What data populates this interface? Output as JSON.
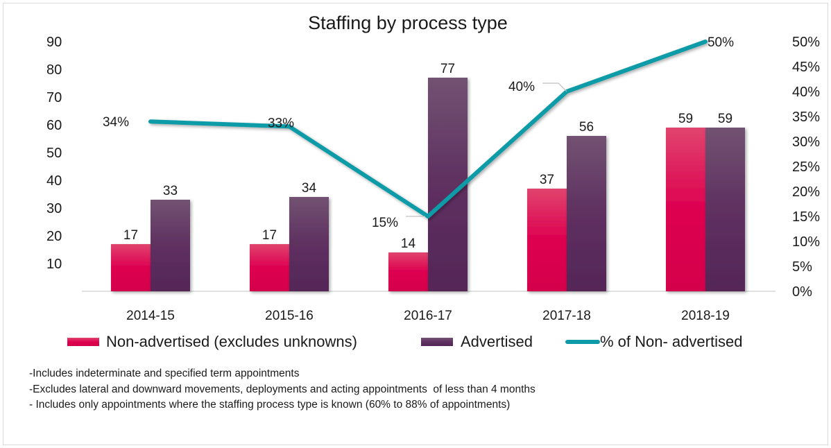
{
  "chart_data": {
    "type": "bar",
    "title": "Staffing by process type",
    "categories": [
      "2014-15",
      "2015-16",
      "2016-17",
      "2017-18",
      "2018-19"
    ],
    "series": [
      {
        "name": "Non-advertised (excludes unknowns)",
        "kind": "bar",
        "axis": "left",
        "color": "#D9004C",
        "values": [
          17,
          17,
          14,
          37,
          59
        ]
      },
      {
        "name": "Advertised",
        "kind": "bar",
        "axis": "left",
        "color": "#5A2A5C",
        "values": [
          33,
          34,
          77,
          56,
          59
        ]
      },
      {
        "name": "% of Non- advertised",
        "kind": "line",
        "axis": "right",
        "color": "#0E9BA8",
        "values": [
          34,
          33,
          15,
          40,
          50
        ],
        "labels": [
          "34%",
          "33%",
          "15%",
          "40%",
          "50%"
        ]
      }
    ],
    "left_axis": {
      "ylim": [
        0,
        90
      ],
      "ticks": [
        10,
        20,
        30,
        40,
        50,
        60,
        70,
        80,
        90
      ],
      "tick_labels": [
        "10",
        "20",
        "30",
        "40",
        "50",
        "60",
        "70",
        "80",
        "90"
      ]
    },
    "right_axis": {
      "ylim": [
        0,
        50
      ],
      "ticks": [
        0,
        5,
        10,
        15,
        20,
        25,
        30,
        35,
        40,
        45,
        50
      ],
      "tick_labels": [
        "0%",
        "5%",
        "10%",
        "15%",
        "20%",
        "25%",
        "30%",
        "35%",
        "40%",
        "45%",
        "50%"
      ]
    },
    "xlabel": "",
    "ylabel": "",
    "grid": false,
    "legend_position": "bottom"
  },
  "notes": [
    "-Includes indeterminate and specified term appointments",
    "-Excludes lateral and downward movements, deployments and acting appointments  of less than 4 months",
    "- Includes only appointments where the staffing process type is known (60% to 88% of appointments)"
  ]
}
